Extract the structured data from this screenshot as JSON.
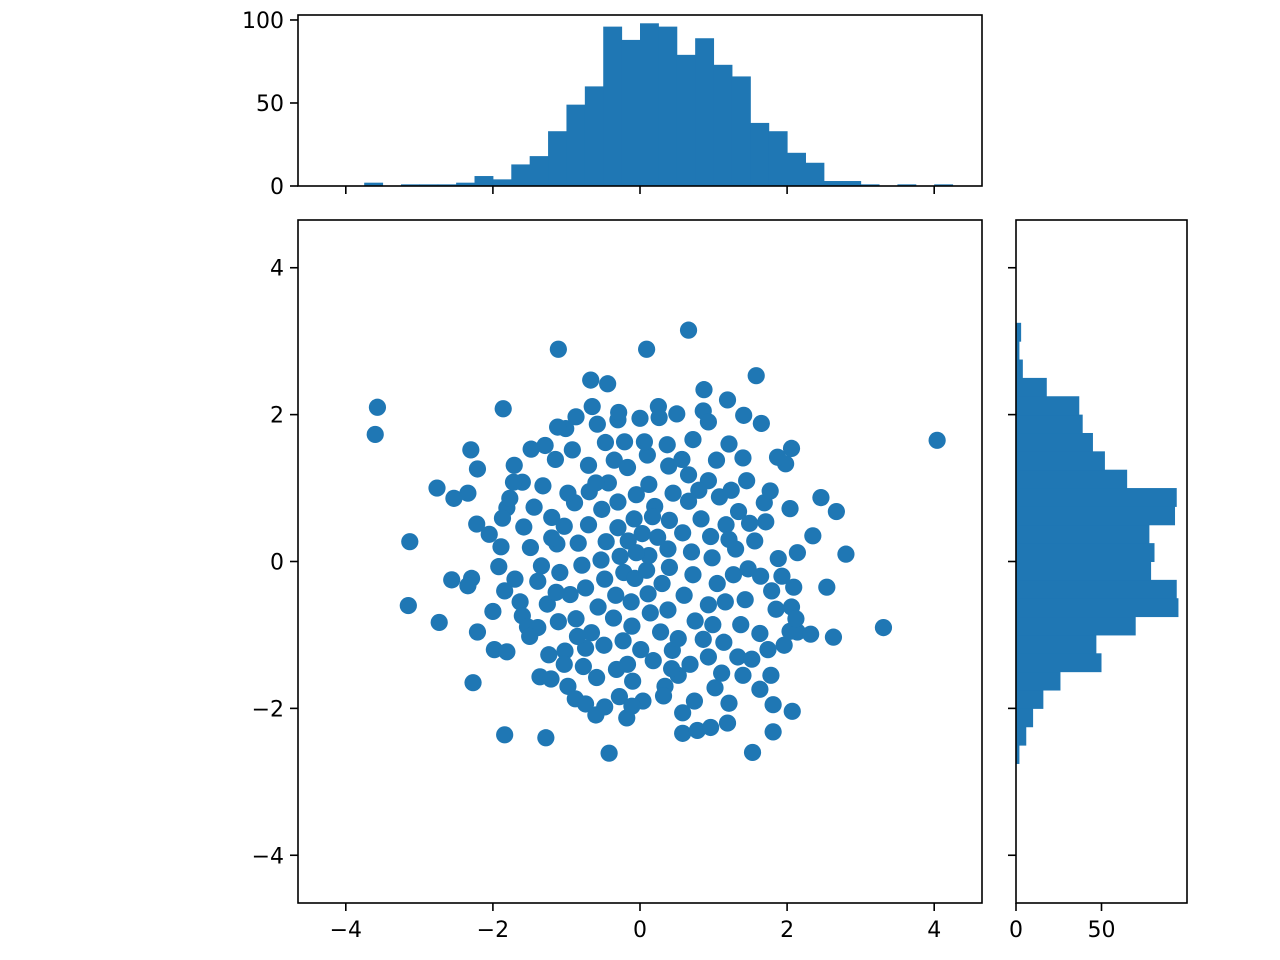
{
  "chart_data": [
    {
      "id": "scatter",
      "type": "scatter",
      "title": "",
      "xlabel": "",
      "ylabel": "",
      "xlim": [
        -4.65,
        4.65
      ],
      "ylim": [
        -4.65,
        4.65
      ],
      "xticks": [
        -4,
        -2,
        0,
        2,
        4
      ],
      "yticks": [
        -4,
        -2,
        0,
        2,
        4
      ],
      "xtick_labels": [
        "−4",
        "−2",
        "0",
        "2",
        "4"
      ],
      "ytick_labels": [
        "−4",
        "−2",
        "0",
        "2",
        "4"
      ],
      "grid": false,
      "color": "#1f77b4",
      "points": [
        [
          -1.11,
          2.89
        ],
        [
          0.09,
          2.89
        ],
        [
          0.66,
          3.15
        ],
        [
          -0.67,
          2.47
        ],
        [
          -0.44,
          2.42
        ],
        [
          0.87,
          2.34
        ],
        [
          1.58,
          2.53
        ],
        [
          -3.57,
          2.1
        ],
        [
          -3.6,
          1.73
        ],
        [
          -1.86,
          2.08
        ],
        [
          4.04,
          1.65
        ],
        [
          -2.3,
          1.52
        ],
        [
          -2.21,
          1.26
        ],
        [
          -1.71,
          1.31
        ],
        [
          -2.76,
          1.0
        ],
        [
          -2.53,
          0.86
        ],
        [
          -2.34,
          0.93
        ],
        [
          -2.22,
          0.51
        ],
        [
          -3.13,
          0.27
        ],
        [
          -3.15,
          -0.6
        ],
        [
          -2.73,
          -0.83
        ],
        [
          -2.56,
          -0.25
        ],
        [
          -2.29,
          -0.23
        ],
        [
          -2.34,
          -0.33
        ],
        [
          -2.21,
          -0.96
        ],
        [
          -1.98,
          -1.2
        ],
        [
          -1.81,
          -1.23
        ],
        [
          -2.27,
          -1.65
        ],
        [
          -1.84,
          -2.36
        ],
        [
          -1.28,
          -2.4
        ],
        [
          -0.42,
          -2.61
        ],
        [
          1.53,
          -2.6
        ],
        [
          0.58,
          -2.34
        ],
        [
          0.78,
          -2.3
        ],
        [
          0.96,
          -2.26
        ],
        [
          1.19,
          -2.2
        ],
        [
          1.81,
          -2.32
        ],
        [
          2.07,
          -2.04
        ],
        [
          1.81,
          -1.95
        ],
        [
          1.63,
          -1.74
        ],
        [
          1.78,
          -1.55
        ],
        [
          2.54,
          -0.35
        ],
        [
          2.63,
          -1.03
        ],
        [
          3.31,
          -0.9
        ],
        [
          2.8,
          0.1
        ],
        [
          2.67,
          0.68
        ],
        [
          2.35,
          0.35
        ],
        [
          2.46,
          0.87
        ],
        [
          2.14,
          0.12
        ],
        [
          2.04,
          0.72
        ],
        [
          1.98,
          1.33
        ],
        [
          2.06,
          1.54
        ],
        [
          1.87,
          1.42
        ],
        [
          1.65,
          1.88
        ],
        [
          1.41,
          1.99
        ],
        [
          1.19,
          2.2
        ],
        [
          0.86,
          2.05
        ],
        [
          0.5,
          2.01
        ],
        [
          0.26,
          1.96
        ],
        [
          0.0,
          1.95
        ],
        [
          -0.3,
          1.93
        ],
        [
          -0.65,
          2.11
        ],
        [
          -0.87,
          1.97
        ],
        [
          -1.01,
          1.81
        ],
        [
          -1.12,
          1.83
        ],
        [
          -1.29,
          1.58
        ],
        [
          -1.48,
          1.53
        ],
        [
          -1.6,
          1.08
        ],
        [
          -1.72,
          1.08
        ],
        [
          -1.81,
          0.73
        ],
        [
          -1.87,
          0.59
        ],
        [
          -1.89,
          0.2
        ],
        [
          -1.84,
          -0.4
        ],
        [
          -1.63,
          -0.55
        ],
        [
          -1.6,
          -0.74
        ],
        [
          -1.53,
          -0.89
        ],
        [
          -1.39,
          -0.9
        ],
        [
          -1.36,
          -1.57
        ],
        [
          -1.24,
          -1.27
        ],
        [
          -1.21,
          -1.6
        ],
        [
          -0.98,
          -1.7
        ],
        [
          -0.88,
          -1.87
        ],
        [
          -0.74,
          -1.94
        ],
        [
          -0.6,
          -2.09
        ],
        [
          -0.48,
          -1.98
        ],
        [
          -0.18,
          -2.13
        ],
        [
          0.04,
          -1.9
        ],
        [
          0.34,
          -1.7
        ],
        [
          0.52,
          -1.55
        ],
        [
          0.74,
          -1.9
        ],
        [
          1.02,
          -1.72
        ],
        [
          1.21,
          -1.93
        ],
        [
          1.33,
          -1.3
        ],
        [
          1.52,
          -1.33
        ],
        [
          1.74,
          -1.2
        ],
        [
          1.96,
          -1.14
        ],
        [
          2.04,
          -0.95
        ],
        [
          2.14,
          -0.96
        ],
        [
          2.32,
          -0.99
        ],
        [
          2.06,
          -0.62
        ],
        [
          2.09,
          -0.35
        ],
        [
          1.85,
          -0.65
        ],
        [
          1.79,
          -0.4
        ],
        [
          1.64,
          -0.2
        ],
        [
          1.71,
          0.54
        ],
        [
          1.69,
          0.8
        ],
        [
          1.49,
          0.52
        ],
        [
          1.45,
          1.1
        ],
        [
          1.4,
          1.41
        ],
        [
          1.21,
          1.6
        ],
        [
          1.04,
          1.38
        ],
        [
          0.72,
          1.66
        ],
        [
          0.37,
          1.59
        ],
        [
          0.1,
          1.45
        ],
        [
          -0.21,
          1.63
        ],
        [
          -0.47,
          1.62
        ],
        [
          -0.7,
          1.31
        ],
        [
          -0.92,
          1.52
        ],
        [
          -1.15,
          1.39
        ],
        [
          -1.32,
          1.03
        ],
        [
          -1.44,
          0.74
        ],
        [
          -1.58,
          0.47
        ],
        [
          -1.49,
          0.19
        ],
        [
          -1.39,
          -0.27
        ],
        [
          -1.26,
          -0.58
        ],
        [
          -1.11,
          -0.82
        ],
        [
          -1.02,
          -1.22
        ],
        [
          -0.77,
          -1.43
        ],
        [
          -0.59,
          -1.58
        ],
        [
          -0.32,
          -1.47
        ],
        [
          -0.1,
          -1.63
        ],
        [
          0.18,
          -1.35
        ],
        [
          0.44,
          -1.21
        ],
        [
          0.68,
          -1.4
        ],
        [
          0.93,
          -1.3
        ],
        [
          1.14,
          -1.1
        ],
        [
          1.37,
          -0.86
        ],
        [
          1.43,
          -0.52
        ],
        [
          1.27,
          -0.18
        ],
        [
          1.3,
          0.17
        ],
        [
          1.17,
          0.5
        ],
        [
          1.08,
          0.88
        ],
        [
          0.93,
          1.1
        ],
        [
          0.66,
          1.18
        ],
        [
          0.39,
          1.3
        ],
        [
          0.12,
          1.05
        ],
        [
          -0.17,
          1.28
        ],
        [
          -0.43,
          1.07
        ],
        [
          -0.69,
          0.95
        ],
        [
          -0.89,
          0.8
        ],
        [
          -1.03,
          0.48
        ],
        [
          -1.13,
          0.24
        ],
        [
          -1.09,
          -0.15
        ],
        [
          -0.95,
          -0.45
        ],
        [
          -0.87,
          -0.78
        ],
        [
          -0.66,
          -0.97
        ],
        [
          -0.49,
          -1.14
        ],
        [
          -0.23,
          -1.08
        ],
        [
          0.01,
          -1.2
        ],
        [
          0.28,
          -0.96
        ],
        [
          0.52,
          -1.05
        ],
        [
          0.75,
          -0.81
        ],
        [
          0.93,
          -0.59
        ],
        [
          1.05,
          -0.3
        ],
        [
          0.98,
          0.05
        ],
        [
          0.96,
          0.34
        ],
        [
          0.83,
          0.58
        ],
        [
          0.66,
          0.82
        ],
        [
          0.45,
          0.93
        ],
        [
          0.2,
          0.75
        ],
        [
          -0.05,
          0.91
        ],
        [
          -0.3,
          0.81
        ],
        [
          -0.52,
          0.71
        ],
        [
          -0.7,
          0.5
        ],
        [
          -0.84,
          0.25
        ],
        [
          -0.79,
          -0.05
        ],
        [
          -0.74,
          -0.36
        ],
        [
          -0.57,
          -0.62
        ],
        [
          -0.36,
          -0.77
        ],
        [
          -0.11,
          -0.88
        ],
        [
          0.14,
          -0.7
        ],
        [
          0.38,
          -0.66
        ],
        [
          0.6,
          -0.46
        ],
        [
          0.72,
          -0.18
        ],
        [
          0.7,
          0.13
        ],
        [
          0.58,
          0.39
        ],
        [
          0.4,
          0.56
        ],
        [
          0.17,
          0.61
        ],
        [
          -0.08,
          0.58
        ],
        [
          -0.3,
          0.46
        ],
        [
          -0.46,
          0.27
        ],
        [
          -0.53,
          0.02
        ],
        [
          -0.48,
          -0.24
        ],
        [
          -0.33,
          -0.46
        ],
        [
          -0.12,
          -0.55
        ],
        [
          0.11,
          -0.44
        ],
        [
          0.3,
          -0.3
        ],
        [
          0.4,
          -0.08
        ],
        [
          0.38,
          0.17
        ],
        [
          0.24,
          0.33
        ],
        [
          0.03,
          0.38
        ],
        [
          -0.16,
          0.28
        ],
        [
          -0.27,
          0.07
        ],
        [
          -0.22,
          -0.15
        ],
        [
          -0.07,
          -0.23
        ],
        [
          0.09,
          -0.12
        ],
        [
          0.12,
          0.08
        ],
        [
          -0.05,
          0.12
        ],
        [
          -0.58,
          1.87
        ],
        [
          0.93,
          1.9
        ],
        [
          -0.98,
          0.93
        ],
        [
          1.24,
          0.97
        ],
        [
          1.56,
          0.28
        ],
        [
          -1.7,
          -0.24
        ],
        [
          -1.92,
          -0.07
        ],
        [
          1.88,
          0.04
        ],
        [
          0.32,
          -1.83
        ],
        [
          -0.28,
          -1.84
        ],
        [
          1.11,
          -1.52
        ],
        [
          -1.5,
          -1.02
        ],
        [
          1.63,
          -0.98
        ],
        [
          -1.2,
          0.6
        ],
        [
          1.34,
          0.68
        ],
        [
          0.86,
          -1.06
        ],
        [
          -0.74,
          -1.18
        ],
        [
          0.06,
          1.63
        ],
        [
          -1.34,
          -0.06
        ],
        [
          1.47,
          -0.1
        ],
        [
          -0.35,
          1.38
        ],
        [
          0.57,
          1.39
        ],
        [
          -0.85,
          -1.02
        ],
        [
          0.99,
          -0.86
        ],
        [
          -1.2,
          0.32
        ],
        [
          1.21,
          0.3
        ],
        [
          -0.17,
          -1.4
        ],
        [
          0.43,
          -1.46
        ],
        [
          1.16,
          -0.55
        ],
        [
          -1.14,
          -0.42
        ],
        [
          0.8,
          0.97
        ],
        [
          -0.6,
          1.07
        ],
        [
          1.93,
          -0.2
        ],
        [
          -2.05,
          0.37
        ],
        [
          -1.77,
          0.86
        ],
        [
          1.77,
          0.96
        ],
        [
          -1.03,
          -1.4
        ],
        [
          1.4,
          -1.55
        ],
        [
          -0.29,
          2.03
        ],
        [
          0.25,
          2.11
        ],
        [
          -2.0,
          -0.68
        ],
        [
          2.12,
          -0.78
        ],
        [
          -0.11,
          -1.97
        ],
        [
          0.58,
          -2.06
        ]
      ]
    },
    {
      "id": "hist-x",
      "type": "bar",
      "title": "",
      "xlabel": "",
      "ylabel": "",
      "ylim": [
        0,
        103
      ],
      "yticks": [
        0,
        50,
        100
      ],
      "ytick_labels": [
        "0",
        "50",
        "100"
      ],
      "grid": false,
      "color": "#1f77b4",
      "bin_edges": [
        -4.0,
        -3.75,
        -3.5,
        -3.25,
        -3.0,
        -2.75,
        -2.5,
        -2.25,
        -2.0,
        -1.75,
        -1.5,
        -1.25,
        -1.0,
        -0.75,
        -0.5,
        -0.25,
        0.0,
        0.25,
        0.5,
        0.75,
        1.0,
        1.25,
        1.5,
        1.75,
        2.0,
        2.25,
        2.5,
        2.75,
        3.0,
        3.25,
        3.5,
        3.75,
        4.0,
        4.25
      ],
      "values": [
        0,
        2,
        0,
        1,
        1,
        1,
        2,
        6,
        4,
        13,
        18,
        33,
        49,
        60,
        96,
        88,
        98,
        96,
        79,
        89,
        73,
        66,
        38,
        33,
        20,
        14,
        3,
        3,
        1,
        0,
        1,
        0,
        1
      ]
    },
    {
      "id": "hist-y",
      "type": "bar",
      "orientation": "horizontal",
      "title": "",
      "xlabel": "",
      "ylabel": "",
      "xlim": [
        0,
        100
      ],
      "xticks": [
        0,
        50
      ],
      "xtick_labels": [
        "0",
        "50"
      ],
      "grid": false,
      "color": "#1f77b4",
      "bin_edges": [
        -2.75,
        -2.5,
        -2.25,
        -2.0,
        -1.75,
        -1.5,
        -1.25,
        -1.0,
        -0.75,
        -0.5,
        -0.25,
        0.0,
        0.25,
        0.5,
        0.75,
        1.0,
        1.25,
        1.5,
        1.75,
        2.0,
        2.25,
        2.5,
        2.75,
        3.0,
        3.25
      ],
      "values": [
        2,
        6,
        10,
        16,
        26,
        50,
        47,
        70,
        95,
        94,
        79,
        81,
        78,
        93,
        94,
        65,
        52,
        45,
        39,
        37,
        18,
        4,
        2,
        3,
        1
      ]
    }
  ]
}
